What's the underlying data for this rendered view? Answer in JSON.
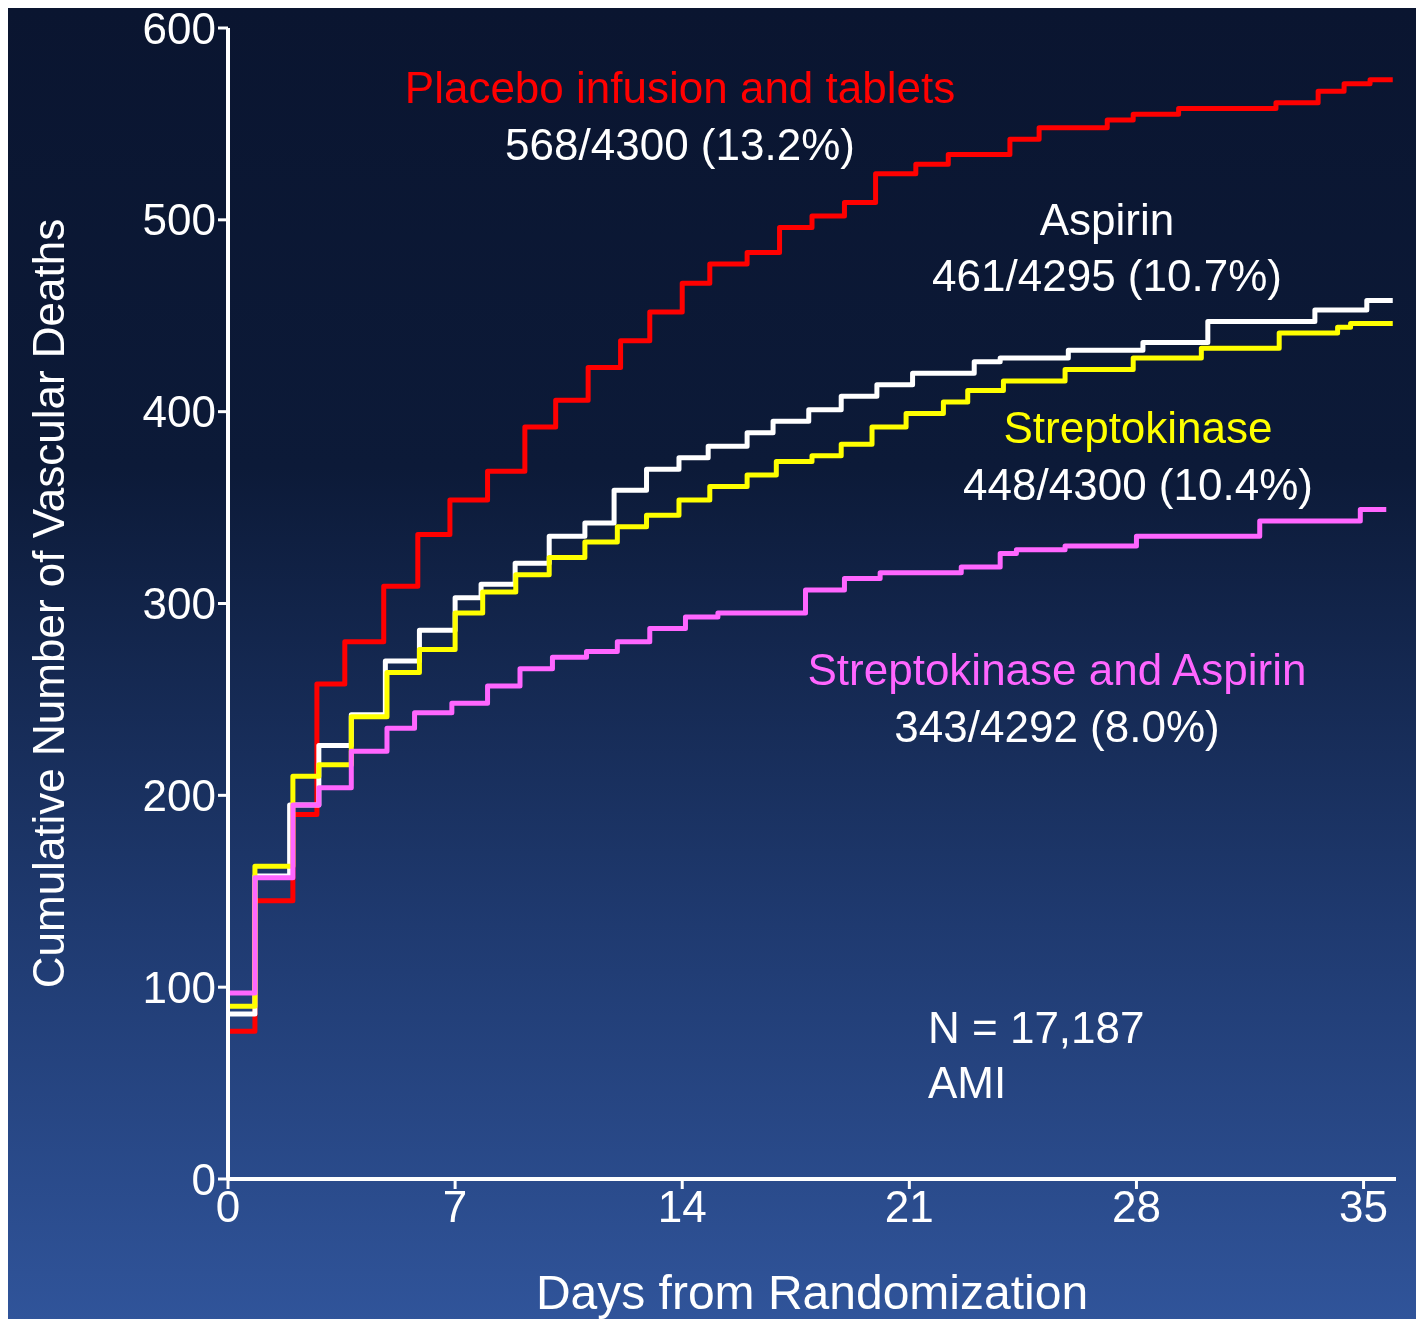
{
  "chart_data": {
    "type": "step",
    "xlabel": "Days from Randomization",
    "ylabel": "Cumulative Number of Vascular Deaths",
    "xlim": [
      0,
      36
    ],
    "xticks": [
      0,
      7,
      14,
      21,
      28,
      35
    ],
    "ylim": [
      0,
      600
    ],
    "yticks": [
      0,
      100,
      200,
      300,
      400,
      500,
      600
    ],
    "marker": "none",
    "line_style": "solid",
    "series": [
      {
        "name": "Placebo infusion and tablets",
        "color": "#ff0000",
        "x": [
          0,
          0.83,
          2.0,
          2.74,
          3.6,
          4.8,
          5.85,
          6.84,
          8.0,
          9.15,
          10.1,
          11.1,
          12.1,
          13.0,
          14.0,
          14.85,
          16.0,
          17.0,
          18.0,
          19.0,
          19.96,
          21.2,
          22.2,
          24.1,
          25.0,
          27.1,
          27.9,
          29.3,
          32.3,
          33.6,
          34.4,
          35.2,
          35.9
        ],
        "values": [
          77,
          145,
          190,
          258,
          280,
          309,
          336,
          354,
          369,
          392,
          406,
          423,
          437,
          452,
          467,
          477,
          483,
          496,
          502,
          509,
          524,
          529,
          534,
          542,
          548,
          552,
          555,
          558,
          561,
          567,
          571,
          573,
          573
        ]
      },
      {
        "name": "Aspirin",
        "color": "#ffffff",
        "x": [
          0,
          0.83,
          1.9,
          2.8,
          3.8,
          4.85,
          5.9,
          7.0,
          7.8,
          8.85,
          9.9,
          11.0,
          11.9,
          12.9,
          13.9,
          14.8,
          16.0,
          16.8,
          17.9,
          18.9,
          20.0,
          21.1,
          23.0,
          23.8,
          25.9,
          28.2,
          30.2,
          33.5,
          35.1,
          35.9
        ],
        "values": [
          86,
          158,
          195,
          226,
          242,
          270,
          286,
          303,
          310,
          321,
          335,
          342,
          359,
          370,
          376,
          382,
          389,
          395,
          401,
          408,
          414,
          420,
          426,
          428,
          432,
          436,
          447,
          453,
          458,
          458
        ]
      },
      {
        "name": "Streptokinase",
        "color": "#ffff00",
        "x": [
          0,
          0.83,
          2.0,
          2.8,
          3.8,
          4.9,
          5.9,
          7.0,
          7.85,
          8.87,
          9.9,
          11.0,
          12.0,
          12.9,
          13.9,
          14.85,
          16.0,
          16.9,
          18.0,
          18.9,
          19.85,
          20.9,
          22.05,
          22.8,
          23.9,
          25.8,
          27.9,
          30.0,
          32.4,
          34.2,
          34.6,
          35.9
        ],
        "values": [
          90,
          163,
          210,
          216,
          241,
          264,
          276,
          295,
          306,
          315,
          324,
          332,
          340,
          346,
          354,
          361,
          367,
          374,
          377,
          383,
          392,
          399,
          405,
          411,
          416,
          422,
          428,
          433,
          441,
          444,
          446,
          446
        ]
      },
      {
        "name": "Streptokinase and Aspirin",
        "color": "#ff66ff",
        "x": [
          0,
          0.83,
          2.0,
          2.8,
          3.8,
          4.9,
          5.75,
          6.9,
          8.0,
          9.0,
          10.0,
          11.05,
          12.0,
          13.0,
          14.1,
          15.1,
          17.8,
          19.0,
          20.1,
          21.2,
          22.6,
          23.8,
          24.3,
          25.8,
          28.0,
          29.4,
          31.8,
          33.5,
          34.9,
          35.7
        ],
        "values": [
          97,
          157,
          195,
          204,
          223,
          235,
          243,
          248,
          257,
          266,
          272,
          275,
          280,
          287,
          293,
          295,
          307,
          313,
          316,
          316,
          319,
          326,
          328,
          330,
          335,
          335,
          343,
          343,
          349,
          349
        ]
      }
    ],
    "annotations": [
      "568/4300 (13.2%)",
      "461/4295 (10.7%)",
      "448/4300 (10.4%)",
      "343/4292 (8.0%)",
      "N = 17,187",
      "AMI"
    ]
  }
}
